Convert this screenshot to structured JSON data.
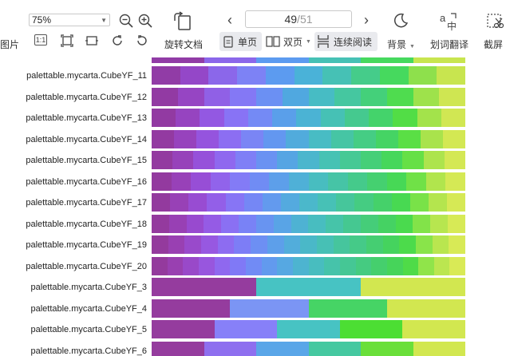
{
  "toolbar": {
    "left_fragment": "图片",
    "zoom": {
      "value": "75%"
    },
    "rotate_label": "旋转文档",
    "page": {
      "current": "49",
      "separator": "/",
      "total": "51"
    },
    "view_single_label": "单页",
    "view_double_label": "双页",
    "view_continuous_label": "连续阅读",
    "background_label": "背景",
    "translate_label": "划词翻译",
    "screenshot_label": "截屏"
  },
  "rows": [
    {
      "label": "palettable.mycarta.CubeYF_11",
      "colors": [
        "#913ca6",
        "#9447c8",
        "#8b67ea",
        "#7d82f5",
        "#5c9bf0",
        "#4ab2d8",
        "#46c1b5",
        "#45cc8a",
        "#46d95e",
        "#8ee04c",
        "#c8e54f"
      ]
    },
    {
      "label": "palettable.mycarta.CubeYF_12",
      "colors": [
        "#923aa3",
        "#9645c3",
        "#9060e6",
        "#8478f5",
        "#6b90f3",
        "#50a8e0",
        "#47bcc4",
        "#45c7a0",
        "#44d07a",
        "#4fdc4f",
        "#9ee24b",
        "#cfe652"
      ]
    },
    {
      "label": "palettable.mycarta.CubeYF_13",
      "colors": [
        "#923aa2",
        "#9644c0",
        "#9358e2",
        "#8873f5",
        "#748af5",
        "#5a9fea",
        "#4bb3d4",
        "#46c1b5",
        "#45c98f",
        "#44d36b",
        "#52dd46",
        "#a3e34b",
        "#d1e753"
      ]
    },
    {
      "label": "palettable.mycarta.CubeYF_14",
      "colors": [
        "#933aa1",
        "#9743bd",
        "#9554de",
        "#8c6ef2",
        "#7a85f5",
        "#6397f0",
        "#51abdc",
        "#48bcc4",
        "#46c5a4",
        "#45cd84",
        "#45d464",
        "#5adf45",
        "#a9e34c",
        "#d3e853"
      ]
    },
    {
      "label": "palettable.mycarta.CubeYF_15",
      "colors": [
        "#933aa0",
        "#9742ba",
        "#9651da",
        "#8f68ef",
        "#7f7ff6",
        "#6a92f2",
        "#56a5e3",
        "#4bb6cd",
        "#47c2b4",
        "#46c995",
        "#45cf78",
        "#46d75b",
        "#66e046",
        "#ade44d",
        "#d4e854"
      ]
    },
    {
      "label": "palettable.mycarta.CubeYF_16",
      "colors": [
        "#933a9f",
        "#9841b8",
        "#974ed6",
        "#9163eb",
        "#837bf6",
        "#708cf4",
        "#5d9fea",
        "#4fb0d7",
        "#48bdc0",
        "#46c4a6",
        "#45ca8b",
        "#45d070",
        "#47d856",
        "#70e147",
        "#b1e54d",
        "#d5e955"
      ]
    },
    {
      "label": "palettable.mycarta.CubeYF_17",
      "colors": [
        "#933a9e",
        "#9841b6",
        "#984cd2",
        "#935fe8",
        "#8775f5",
        "#7587f5",
        "#639aee",
        "#54aadf",
        "#4bb8cb",
        "#47c1b6",
        "#46c69b",
        "#45cc82",
        "#45d16a",
        "#48d952",
        "#79e248",
        "#b4e54e",
        "#d6e955"
      ]
    },
    {
      "label": "palettable.mycarta.CubeYF_18",
      "colors": [
        "#943a9e",
        "#9840b4",
        "#984acf",
        "#955be5",
        "#8a70f3",
        "#7982f6",
        "#6894f1",
        "#59a4e6",
        "#4eb2d3",
        "#48bdc0",
        "#46c4a9",
        "#45c891",
        "#45cd79",
        "#45d263",
        "#4ada4e",
        "#82e349",
        "#b7e64f",
        "#d7ea56"
      ]
    },
    {
      "label": "palettable.mycarta.CubeYF_19",
      "colors": [
        "#943a9d",
        "#9940b2",
        "#994acb",
        "#9758e1",
        "#8d6cf1",
        "#7d7df6",
        "#6d8ff3",
        "#5d9fea",
        "#52addb",
        "#4ab8c8",
        "#47c0b5",
        "#46c59d",
        "#45ca88",
        "#45ce72",
        "#45d35e",
        "#4cdb4b",
        "#89e44a",
        "#b9e64f",
        "#d8ea56"
      ]
    },
    {
      "label": "palettable.mycarta.CubeYF_20",
      "colors": [
        "#943a9d",
        "#9940b1",
        "#9949c9",
        "#9856de",
        "#8f68ef",
        "#8079f6",
        "#718bf5",
        "#629aee",
        "#56a8e2",
        "#4db4d0",
        "#48bdbf",
        "#46c3aa",
        "#45c795",
        "#45cb81",
        "#45cf6d",
        "#46d45a",
        "#4fdb48",
        "#90e44a",
        "#bbe650",
        "#d9ea56"
      ]
    },
    {
      "label": "palettable.mycarta.CubeYF_3",
      "colors": [
        "#953c9e",
        "#47c3c3",
        "#d2e750"
      ]
    },
    {
      "label": "palettable.mycarta.CubeYF_4",
      "colors": [
        "#953c9e",
        "#7b95f4",
        "#46d465",
        "#d2e750"
      ]
    },
    {
      "label": "palettable.mycarta.CubeYF_5",
      "colors": [
        "#953c9e",
        "#8780f8",
        "#47c3c3",
        "#4cde33",
        "#d2e750"
      ]
    },
    {
      "label": "palettable.mycarta.CubeYF_6",
      "colors": [
        "#953c9e",
        "#8e6fef",
        "#5aa6e8",
        "#45c8a0",
        "#6adf3a",
        "#d2e750"
      ]
    }
  ],
  "top_partial_colors": [
    "#913ca6",
    "#8b67ea",
    "#5c9bf0",
    "#46c1b5",
    "#46d95e",
    "#c8e54f"
  ]
}
